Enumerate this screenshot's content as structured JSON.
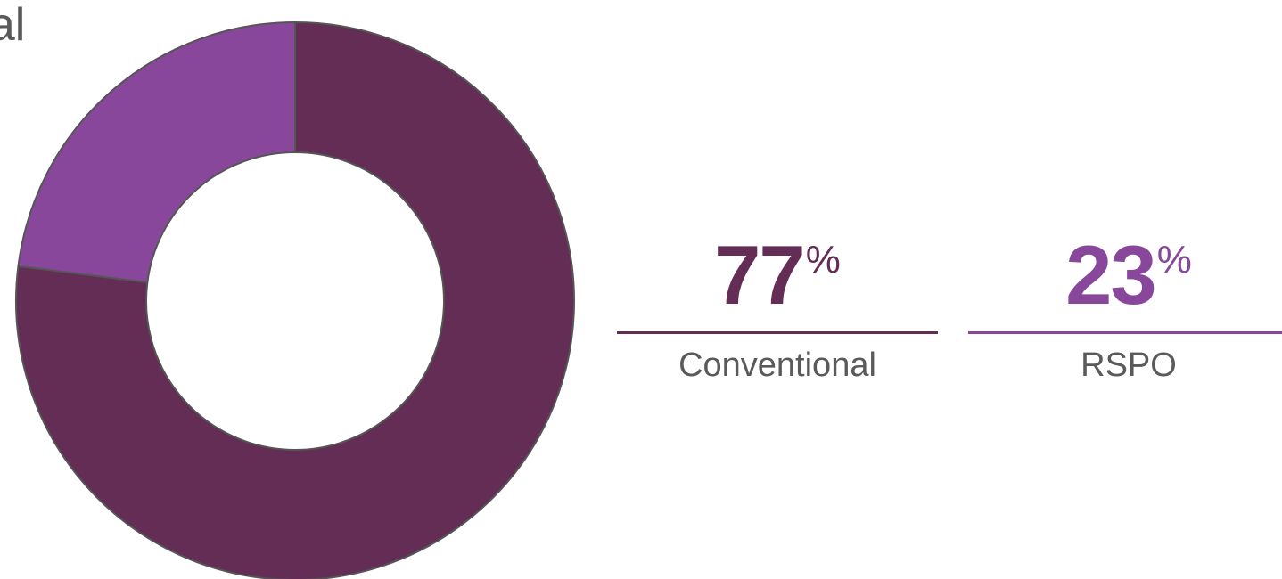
{
  "chart_data": {
    "type": "pie",
    "title": "obal",
    "series": [
      {
        "name": "Conventional",
        "value": 77,
        "color": "#632d55"
      },
      {
        "name": "RSPO",
        "value": 23,
        "color": "#88479a"
      }
    ],
    "stroke_color": "#555555"
  },
  "stats": [
    {
      "value": "77",
      "unit": "%",
      "label": "Conventional",
      "color": "#632d55"
    },
    {
      "value": "23",
      "unit": "%",
      "label": "RSPO",
      "color": "#88479a"
    }
  ]
}
